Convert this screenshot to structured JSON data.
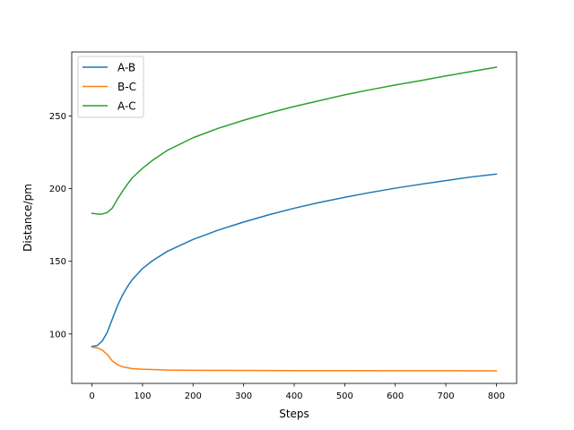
{
  "chart_data": {
    "type": "line",
    "title": "",
    "xlabel": "Steps",
    "ylabel": "Distance/pm",
    "xlim": [
      -40,
      840
    ],
    "ylim": [
      66,
      294
    ],
    "xticks": [
      0,
      100,
      200,
      300,
      400,
      500,
      600,
      700,
      800
    ],
    "yticks": [
      100,
      150,
      200,
      250
    ],
    "grid": false,
    "legend_position": "top-left",
    "series": [
      {
        "name": "A-B",
        "color": "#1f77b4",
        "points": [
          [
            0,
            91.5
          ],
          [
            10,
            92
          ],
          [
            20,
            95
          ],
          [
            30,
            101
          ],
          [
            40,
            110
          ],
          [
            50,
            119
          ],
          [
            60,
            126.5
          ],
          [
            70,
            132.5
          ],
          [
            80,
            137.5
          ],
          [
            100,
            145
          ],
          [
            120,
            150.5
          ],
          [
            150,
            157
          ],
          [
            200,
            165
          ],
          [
            250,
            171.5
          ],
          [
            300,
            177
          ],
          [
            350,
            182
          ],
          [
            400,
            186.5
          ],
          [
            450,
            190.5
          ],
          [
            500,
            194
          ],
          [
            550,
            197.3
          ],
          [
            600,
            200.3
          ],
          [
            650,
            203
          ],
          [
            700,
            205.5
          ],
          [
            750,
            208
          ],
          [
            800,
            210
          ]
        ]
      },
      {
        "name": "B-C",
        "color": "#ff7f0e",
        "points": [
          [
            0,
            91
          ],
          [
            10,
            90.5
          ],
          [
            20,
            89
          ],
          [
            30,
            86
          ],
          [
            40,
            81.5
          ],
          [
            50,
            79
          ],
          [
            60,
            77.5
          ],
          [
            70,
            76.8
          ],
          [
            80,
            76.2
          ],
          [
            100,
            75.8
          ],
          [
            150,
            75.2
          ],
          [
            200,
            75
          ],
          [
            300,
            74.9
          ],
          [
            400,
            74.8
          ],
          [
            500,
            74.8
          ],
          [
            600,
            74.7
          ],
          [
            700,
            74.7
          ],
          [
            800,
            74.6
          ]
        ]
      },
      {
        "name": "A-C",
        "color": "#2ca02c",
        "points": [
          [
            0,
            183
          ],
          [
            10,
            182.5
          ],
          [
            20,
            182.5
          ],
          [
            30,
            183.5
          ],
          [
            40,
            186.5
          ],
          [
            50,
            192.5
          ],
          [
            60,
            198
          ],
          [
            70,
            203
          ],
          [
            80,
            207.5
          ],
          [
            100,
            214
          ],
          [
            120,
            219.5
          ],
          [
            150,
            226.5
          ],
          [
            200,
            235
          ],
          [
            250,
            241.5
          ],
          [
            300,
            247
          ],
          [
            350,
            252
          ],
          [
            400,
            256.5
          ],
          [
            450,
            260.5
          ],
          [
            500,
            264.5
          ],
          [
            550,
            268
          ],
          [
            600,
            271.3
          ],
          [
            650,
            274.3
          ],
          [
            700,
            277.5
          ],
          [
            750,
            280.5
          ],
          [
            800,
            283.5
          ]
        ]
      }
    ]
  }
}
